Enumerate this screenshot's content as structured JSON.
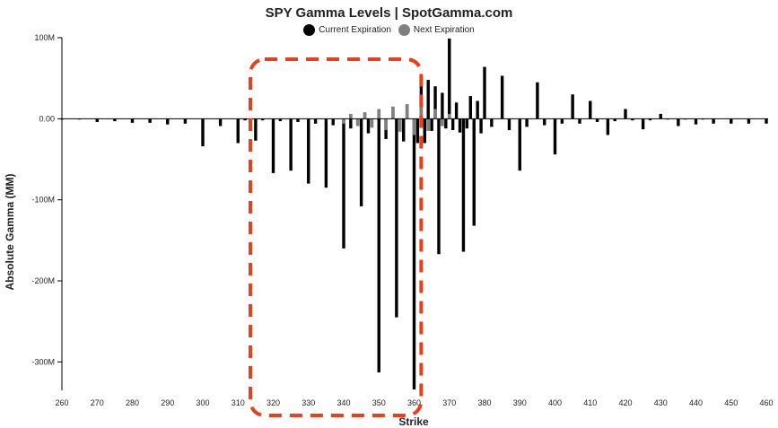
{
  "chart_data": {
    "type": "bar",
    "title": "SPY Gamma Levels | SpotGamma.com",
    "xlabel": "Strike",
    "ylabel": "Absolute Gamma (MM)",
    "xlim": [
      260,
      460
    ],
    "ylim": [
      -335,
      100
    ],
    "x_ticks": [
      "260",
      "270",
      "280",
      "290",
      "300",
      "310",
      "320",
      "330",
      "340",
      "350",
      "360",
      "370",
      "380",
      "390",
      "400",
      "410",
      "420",
      "430",
      "440",
      "450",
      "460"
    ],
    "y_ticks": [
      {
        "value": 100,
        "label": "100M"
      },
      {
        "value": 0,
        "label": "0.00"
      },
      {
        "value": -100,
        "label": "-100M"
      },
      {
        "value": -200,
        "label": "-200M"
      },
      {
        "value": -300,
        "label": "-300M"
      }
    ],
    "legend_position": "top-center",
    "series": [
      {
        "name": "Current Expiration",
        "color": "#000000",
        "x": [
          260,
          265,
          270,
          275,
          280,
          285,
          290,
          295,
          300,
          305,
          310,
          312,
          315,
          317,
          320,
          322,
          325,
          327,
          330,
          332,
          335,
          337,
          340,
          342,
          345,
          347,
          350,
          352,
          355,
          357,
          360,
          361,
          362,
          363,
          364,
          365,
          366,
          367,
          368,
          369,
          370,
          371,
          372,
          373,
          374,
          375,
          376,
          377,
          378,
          379,
          380,
          382,
          385,
          387,
          390,
          392,
          395,
          397,
          400,
          402,
          405,
          407,
          410,
          412,
          415,
          417,
          420,
          422,
          425,
          427,
          430,
          432,
          435,
          437,
          440,
          442,
          445,
          450,
          455,
          460
        ],
        "values": [
          -1,
          -1,
          -4,
          -3,
          -5,
          -5,
          -7,
          -6,
          -34,
          -9,
          -30,
          -2,
          -27,
          -2,
          -67,
          -3,
          -64,
          -4,
          -80,
          -6,
          -85,
          -8,
          -160,
          -12,
          -108,
          -18,
          -313,
          -25,
          -245,
          -28,
          -334,
          -30,
          54,
          -30,
          48,
          -15,
          40,
          -167,
          32,
          -12,
          99,
          -14,
          20,
          -17,
          -164,
          -12,
          28,
          -132,
          22,
          -18,
          64,
          -10,
          53,
          -14,
          -64,
          -10,
          45,
          -8,
          -44,
          -6,
          30,
          -6,
          22,
          -4,
          -20,
          -3,
          12,
          -2,
          -13,
          -2,
          6,
          -1,
          -9,
          -1,
          -7,
          -1,
          -6,
          -6,
          -6,
          -6
        ]
      },
      {
        "name": "Next Expiration",
        "color": "#808080",
        "x": [
          340,
          342,
          344,
          346,
          348,
          350,
          352,
          354,
          356,
          358,
          360,
          362,
          364,
          366,
          368,
          370
        ],
        "values": [
          -6,
          6,
          -9,
          8,
          -11,
          12,
          -14,
          15,
          -16,
          18,
          -20,
          17,
          -15,
          12,
          -9,
          6
        ]
      }
    ]
  }
}
